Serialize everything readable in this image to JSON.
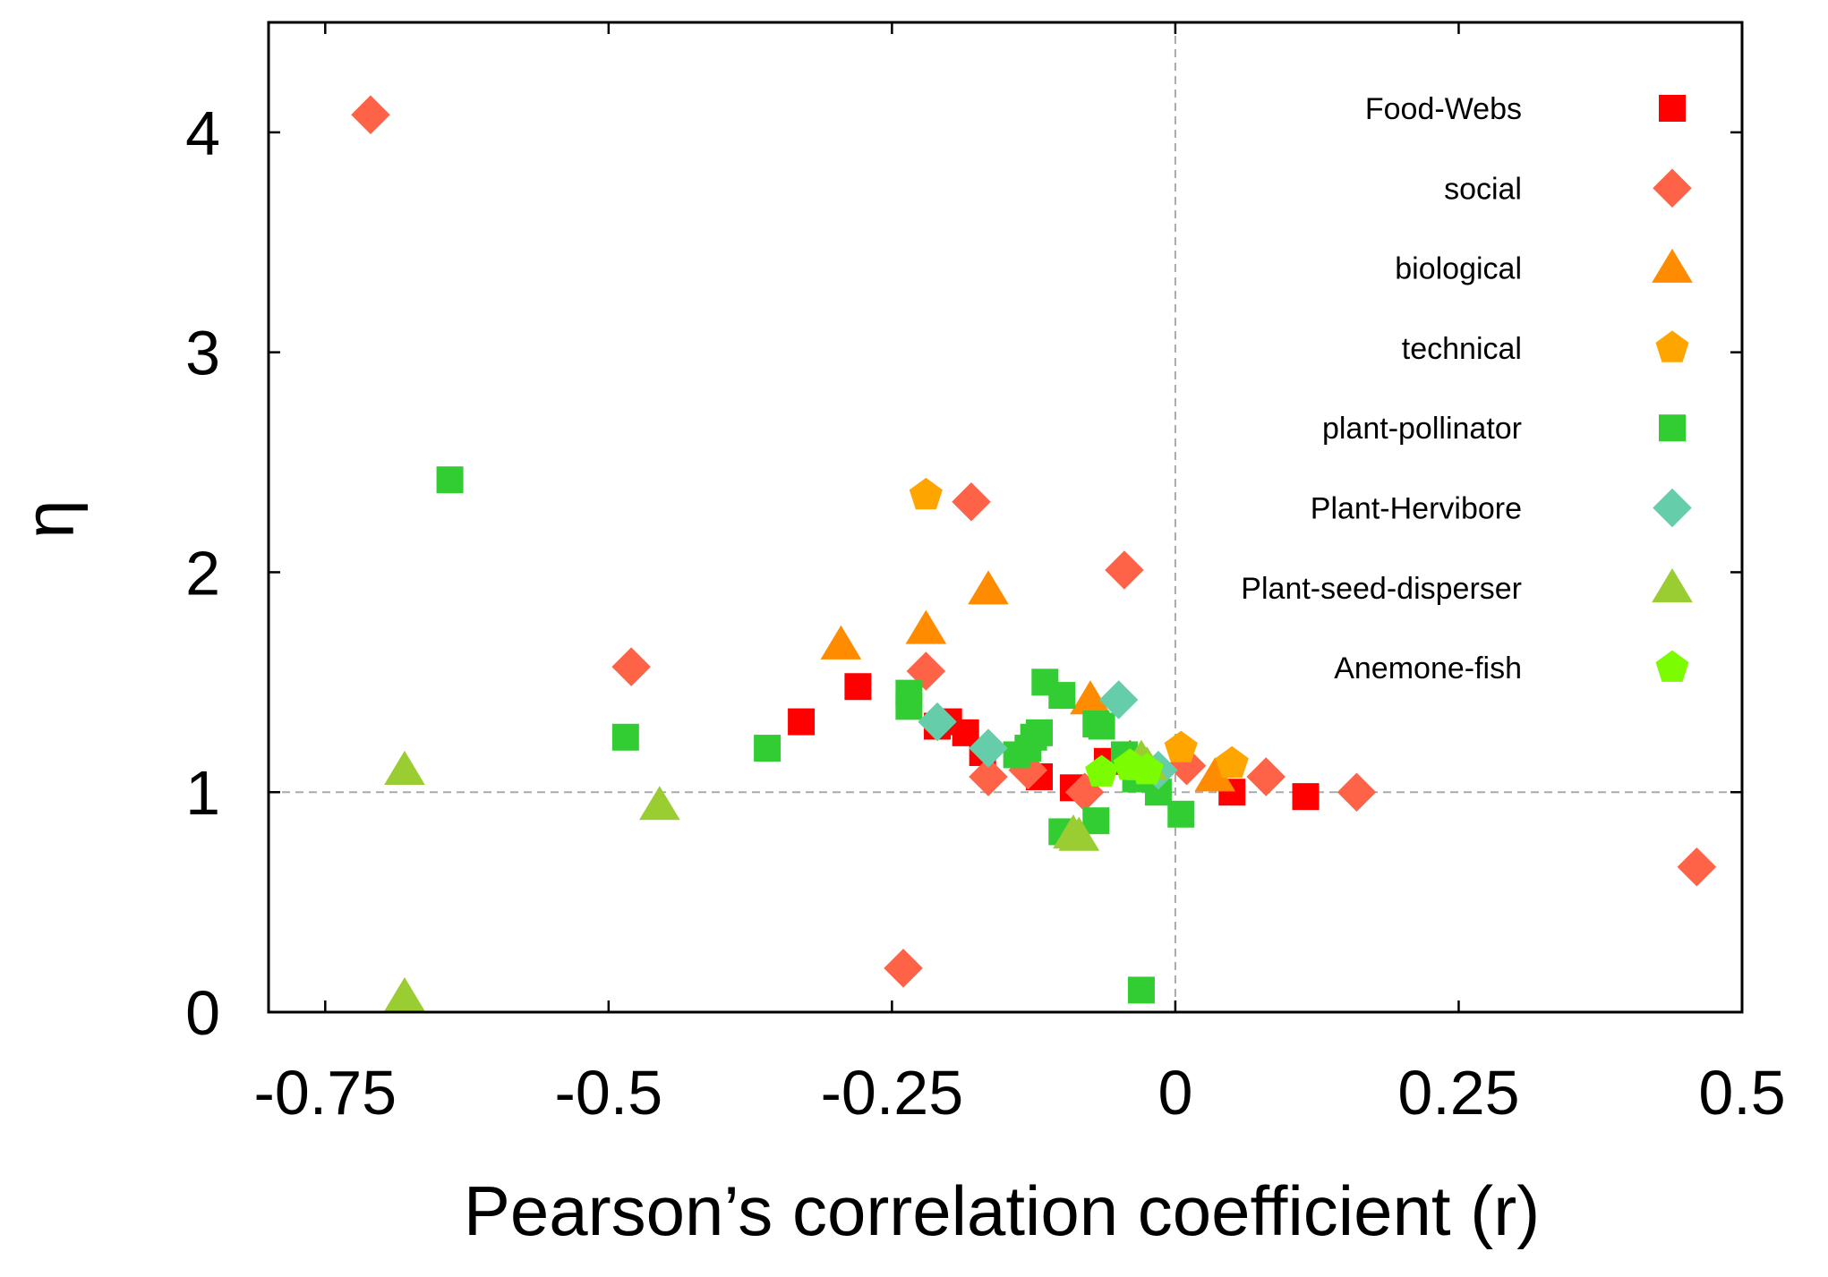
{
  "chart_data": {
    "type": "scatter",
    "xlabel": "Pearson’s correlation coefficient  (r)",
    "ylabel": "η",
    "xlim": [
      -0.8,
      0.5
    ],
    "ylim": [
      0,
      4.5
    ],
    "x_ticks": [
      {
        "value": -0.75,
        "label": "-0.75"
      },
      {
        "value": -0.5,
        "label": "-0.5"
      },
      {
        "value": -0.25,
        "label": "-0.25"
      },
      {
        "value": 0,
        "label": "0"
      },
      {
        "value": 0.25,
        "label": "0.25"
      },
      {
        "value": 0.5,
        "label": "0.5"
      }
    ],
    "y_ticks": [
      {
        "value": 0,
        "label": "0"
      },
      {
        "value": 1,
        "label": "1"
      },
      {
        "value": 2,
        "label": "2"
      },
      {
        "value": 3,
        "label": "3"
      },
      {
        "value": 4,
        "label": "4"
      }
    ],
    "reference_lines": {
      "x": 0,
      "y": 1
    },
    "legend_position": "top-right",
    "series": [
      {
        "name": "Food-Webs",
        "marker": "square",
        "color": "#ff0000",
        "points": [
          [
            -0.33,
            1.32
          ],
          [
            -0.28,
            1.48
          ],
          [
            -0.21,
            1.3
          ],
          [
            -0.2,
            1.32
          ],
          [
            -0.185,
            1.27
          ],
          [
            -0.17,
            1.18
          ],
          [
            -0.12,
            1.07
          ],
          [
            -0.09,
            1.02
          ],
          [
            -0.06,
            1.14
          ],
          [
            0.05,
            1.0
          ],
          [
            0.115,
            0.98
          ]
        ]
      },
      {
        "name": "social",
        "marker": "diamond",
        "color": "#ff6347",
        "points": [
          [
            -0.71,
            4.08
          ],
          [
            -0.48,
            1.57
          ],
          [
            -0.24,
            0.2
          ],
          [
            -0.22,
            1.55
          ],
          [
            -0.18,
            2.32
          ],
          [
            -0.165,
            1.07
          ],
          [
            -0.13,
            1.1
          ],
          [
            -0.08,
            1.0
          ],
          [
            -0.045,
            2.01
          ],
          [
            -0.04,
            1.15
          ],
          [
            0.01,
            1.12
          ],
          [
            0.08,
            1.07
          ],
          [
            0.16,
            1.0
          ],
          [
            0.46,
            0.66
          ]
        ]
      },
      {
        "name": "biological",
        "marker": "triangle",
        "color": "#ff8c00",
        "points": [
          [
            -0.295,
            1.67
          ],
          [
            -0.22,
            1.74
          ],
          [
            -0.165,
            1.92
          ],
          [
            -0.075,
            1.42
          ],
          [
            0.035,
            1.07
          ]
        ]
      },
      {
        "name": "technical",
        "marker": "pentagon",
        "color": "#ffa500",
        "points": [
          [
            -0.22,
            2.35
          ],
          [
            0.005,
            1.2
          ],
          [
            0.05,
            1.13
          ]
        ]
      },
      {
        "name": "plant-pollinator",
        "marker": "square",
        "color": "#32cd32",
        "points": [
          [
            -0.64,
            2.42
          ],
          [
            -0.485,
            1.25
          ],
          [
            -0.36,
            1.2
          ],
          [
            -0.235,
            1.45
          ],
          [
            -0.235,
            1.39
          ],
          [
            -0.14,
            1.17
          ],
          [
            -0.13,
            1.2
          ],
          [
            -0.125,
            1.25
          ],
          [
            -0.12,
            1.27
          ],
          [
            -0.115,
            1.5
          ],
          [
            -0.1,
            1.44
          ],
          [
            -0.1,
            0.82
          ],
          [
            -0.07,
            1.31
          ],
          [
            -0.07,
            0.87
          ],
          [
            -0.065,
            1.3
          ],
          [
            -0.045,
            1.17
          ],
          [
            -0.035,
            1.06
          ],
          [
            -0.015,
            1.0
          ],
          [
            0.005,
            0.9
          ],
          [
            -0.03,
            0.1
          ]
        ]
      },
      {
        "name": "Plant-Hervibore",
        "marker": "diamond",
        "color": "#66cdaa",
        "points": [
          [
            -0.21,
            1.32
          ],
          [
            -0.165,
            1.2
          ],
          [
            -0.05,
            1.42
          ],
          [
            -0.015,
            1.1
          ]
        ]
      },
      {
        "name": "Plant-seed-disperser",
        "marker": "triangle",
        "color": "#9acd32",
        "points": [
          [
            -0.68,
            1.1
          ],
          [
            -0.68,
            0.07
          ],
          [
            -0.455,
            0.94
          ],
          [
            -0.09,
            0.81
          ],
          [
            -0.085,
            0.8
          ],
          [
            -0.03,
            1.15
          ],
          [
            -0.025,
            1.12
          ]
        ]
      },
      {
        "name": "Anemone-fish",
        "marker": "pentagon",
        "color": "#7cfc00",
        "points": [
          [
            -0.065,
            1.09
          ],
          [
            -0.04,
            1.12
          ],
          [
            -0.025,
            1.1
          ]
        ]
      }
    ]
  }
}
